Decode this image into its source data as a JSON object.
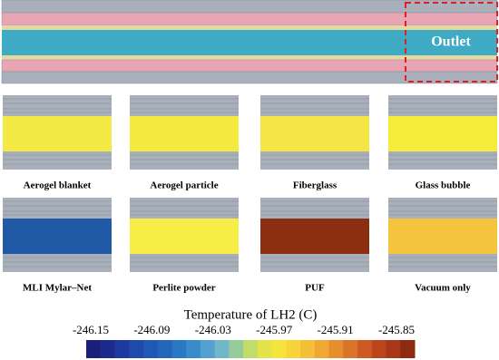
{
  "top": {
    "label": "Outlet"
  },
  "panels": [
    {
      "label": "Aerogel blanket",
      "color": "#f3ea45"
    },
    {
      "label": "Aerogel particle",
      "color": "#f4ea40"
    },
    {
      "label": "Fiberglass",
      "color": "#f5e646"
    },
    {
      "label": "Glass bubble",
      "color": "#f6ec3c"
    },
    {
      "label": "MLI Mylar–Net",
      "color": "#2059a6"
    },
    {
      "label": "Perlite powder",
      "color": "#f6ee46"
    },
    {
      "label": "PUF",
      "color": "#8c2e10"
    },
    {
      "label": "Vacuum only",
      "color": "#f5c43f"
    }
  ],
  "colorbar": {
    "title": "Temperature of LH2 (C)",
    "ticks": [
      "-246.15",
      "-246.09",
      "-246.03",
      "-245.97",
      "-245.91",
      "-245.85"
    ],
    "colors": [
      "#1a1f7a",
      "#1d2a8c",
      "#1e3a9e",
      "#1f4aac",
      "#2058b4",
      "#2367bd",
      "#2a78c4",
      "#3a8bca",
      "#52a1cf",
      "#6fb7c9",
      "#95cc9a",
      "#c2dc6a",
      "#e6e24a",
      "#f4e43c",
      "#f6d43a",
      "#f4c038",
      "#efa834",
      "#e68e2e",
      "#db7328",
      "#cd5a22",
      "#bd451c",
      "#a83618",
      "#8c2a12"
    ]
  }
}
